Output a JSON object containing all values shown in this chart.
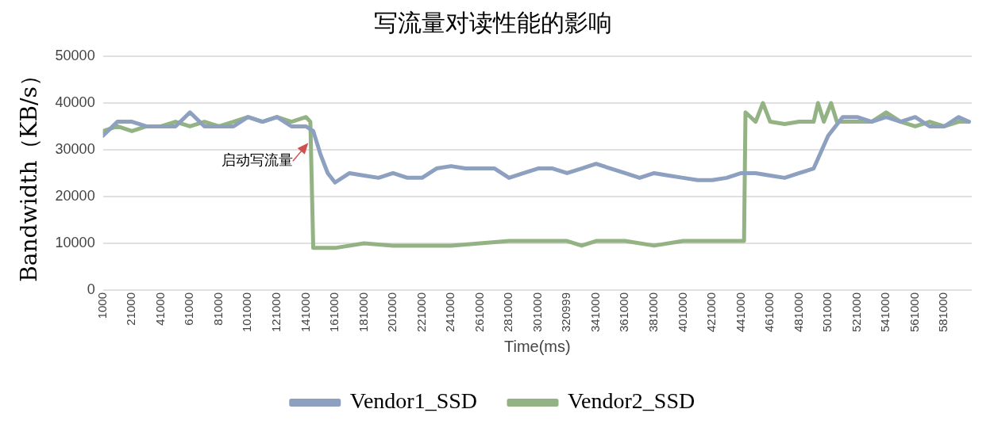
{
  "chart_data": {
    "type": "line",
    "title": "写流量对读性能的影响",
    "xlabel": "Time(ms)",
    "ylabel": "Bandwidth（KB/s）",
    "xlim": [
      1000,
      600000
    ],
    "xticks": [
      1000,
      21000,
      41000,
      61000,
      81000,
      101000,
      121000,
      141000,
      161000,
      181000,
      201000,
      221000,
      241000,
      261000,
      281000,
      301000,
      320999,
      341000,
      361000,
      381000,
      401000,
      421000,
      441000,
      461000,
      481000,
      501000,
      521000,
      541000,
      561000,
      581000
    ],
    "ylim": [
      0,
      50000
    ],
    "yticks": [
      0,
      10000,
      20000,
      30000,
      40000,
      50000
    ],
    "grid": "y",
    "legend": "bottom",
    "marker": "none",
    "line_style": "solid",
    "annotations": [
      {
        "text": "启动写流量",
        "x": 144000,
        "y": 32000
      }
    ],
    "series": [
      {
        "name": "Vendor1_SSD",
        "color": "#8da0bf",
        "x": [
          1000,
          11000,
          21000,
          31000,
          41000,
          51000,
          61000,
          71000,
          81000,
          91000,
          101000,
          111000,
          121000,
          131000,
          141000,
          146000,
          151000,
          156000,
          161000,
          171000,
          181000,
          191000,
          201000,
          211000,
          221000,
          231000,
          241000,
          251000,
          261000,
          271000,
          281000,
          291000,
          301000,
          311000,
          321000,
          331000,
          341000,
          351000,
          361000,
          371000,
          381000,
          391000,
          401000,
          411000,
          421000,
          431000,
          441000,
          451000,
          461000,
          471000,
          481000,
          491000,
          501000,
          511000,
          521000,
          531000,
          541000,
          551000,
          561000,
          571000,
          581000,
          591000,
          598000
        ],
        "values": [
          33000,
          36000,
          36000,
          35000,
          35000,
          35000,
          38000,
          35000,
          35000,
          35000,
          37000,
          36000,
          37000,
          35000,
          35000,
          34000,
          29000,
          25000,
          23000,
          25000,
          24500,
          24000,
          25000,
          24000,
          24000,
          26000,
          26500,
          26000,
          26000,
          26000,
          24000,
          25000,
          26000,
          26000,
          25000,
          26000,
          27000,
          26000,
          25000,
          24000,
          25000,
          24500,
          24000,
          23500,
          23500,
          24000,
          25000,
          25000,
          24500,
          24000,
          25000,
          26000,
          33000,
          37000,
          37000,
          36000,
          37000,
          36000,
          37000,
          35000,
          35000,
          37000,
          36000
        ]
      },
      {
        "name": "Vendor2_SSD",
        "color": "#94b384",
        "x": [
          1000,
          11000,
          21000,
          31000,
          41000,
          51000,
          61000,
          71000,
          81000,
          91000,
          101000,
          111000,
          121000,
          131000,
          141000,
          144000,
          146000,
          161000,
          181000,
          201000,
          221000,
          241000,
          261000,
          281000,
          301000,
          321000,
          331000,
          341000,
          361000,
          381000,
          401000,
          421000,
          443000,
          444000,
          451000,
          456000,
          461000,
          471000,
          481000,
          491000,
          494000,
          498000,
          503000,
          507000,
          521000,
          531000,
          541000,
          551000,
          561000,
          571000,
          581000,
          591000,
          598000
        ],
        "values": [
          34000,
          35000,
          34000,
          35000,
          35000,
          36000,
          35000,
          36000,
          35000,
          36000,
          37000,
          36000,
          37000,
          36000,
          37000,
          36000,
          9000,
          9000,
          10000,
          9500,
          9500,
          9500,
          10000,
          10500,
          10500,
          10500,
          9500,
          10500,
          10500,
          9500,
          10500,
          10500,
          10500,
          38000,
          36000,
          40000,
          36000,
          35500,
          36000,
          36000,
          40000,
          36000,
          40000,
          36000,
          36000,
          36000,
          38000,
          36000,
          35000,
          36000,
          35000,
          36000,
          36000
        ]
      }
    ]
  }
}
